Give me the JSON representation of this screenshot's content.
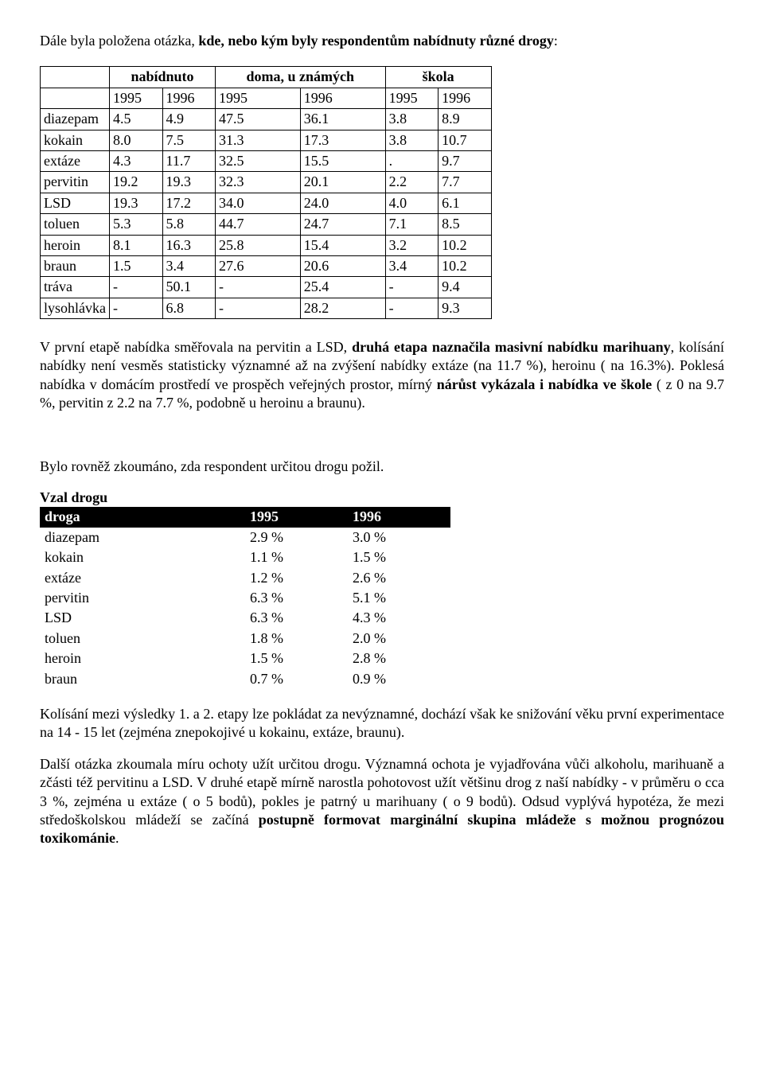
{
  "intro": {
    "pre": "Dále byla položena  otázka, ",
    "bold": "kde, nebo kým  byly respondentům  nabídnuty různé drogy",
    "post": ":"
  },
  "table1": {
    "col_groups": [
      "nabídnuto",
      "doma, u známých",
      "škola"
    ],
    "years": [
      "1995",
      "1996",
      "1995",
      "1996",
      "1995",
      "1996"
    ],
    "rows": [
      {
        "label": "diazepam",
        "v": [
          "4.5",
          "4.9",
          "47.5",
          "36.1",
          "3.8",
          "8.9"
        ]
      },
      {
        "label": "kokain",
        "v": [
          "8.0",
          "7.5",
          "31.3",
          "17.3",
          "3.8",
          "10.7"
        ]
      },
      {
        "label": "extáze",
        "v": [
          "4.3",
          "11.7",
          "32.5",
          "15.5",
          ".",
          "9.7"
        ]
      },
      {
        "label": "pervitin",
        "v": [
          "19.2",
          "19.3",
          "32.3",
          "20.1",
          "2.2",
          "7.7"
        ]
      },
      {
        "label": "LSD",
        "v": [
          "19.3",
          "17.2",
          "34.0",
          "24.0",
          "4.0",
          "6.1"
        ]
      },
      {
        "label": "toluen",
        "v": [
          "5.3",
          "5.8",
          "44.7",
          "24.7",
          "7.1",
          "8.5"
        ]
      },
      {
        "label": "heroin",
        "v": [
          "8.1",
          "16.3",
          "25.8",
          "15.4",
          "3.2",
          "10.2"
        ]
      },
      {
        "label": "braun",
        "v": [
          "1.5",
          "3.4",
          "27.6",
          "20.6",
          "3.4",
          "10.2"
        ]
      },
      {
        "label": "tráva",
        "v": [
          "-",
          "50.1",
          "-",
          "25.4",
          "-",
          "9.4"
        ]
      },
      {
        "label": "lysohlávka",
        "v": [
          "-",
          "6.8",
          "-",
          "28.2",
          "-",
          "9.3"
        ]
      }
    ]
  },
  "para1": {
    "t1": "V první etapě nabídka směřovala na pervitin a LSD, ",
    "b1": "druhá etapa naznačila masivní nabídku marihuany",
    "t2": ", kolísání nabídky není vesměs statisticky významné až na  zvýšení nabídky extáze (na 11.7 %), heroinu ( na 16.3%). Poklesá nabídka v domácím prostředí ve prospěch veřejných prostor, mírný ",
    "b2": "nárůst vykázala i nabídka ve škole",
    "t3": " (  z 0 na 9.7 %, pervitin z 2.2 na 7.7 %,  podobně u heroinu a braunu)."
  },
  "para2": "Bylo rovněž zkoumáno, zda respondent určitou drogu požil.",
  "table2": {
    "title": "Vzal drogu",
    "headers": [
      "droga",
      "1995",
      "1996"
    ],
    "rows": [
      {
        "label": "diazepam",
        "y1": "2.9 %",
        "y2": "3.0 %"
      },
      {
        "label": "kokain",
        "y1": "1.1 %",
        "y2": "1.5 %"
      },
      {
        "label": "extáze",
        "y1": "1.2 %",
        "y2": "2.6 %"
      },
      {
        "label": "pervitin",
        "y1": "6.3 %",
        "y2": "5.1 %"
      },
      {
        "label": "LSD",
        "y1": "6.3 %",
        "y2": "4.3 %"
      },
      {
        "label": "toluen",
        "y1": "1.8 %",
        "y2": "2.0 %"
      },
      {
        "label": "heroin",
        "y1": "1.5 %",
        "y2": "2.8 %"
      },
      {
        "label": "braun",
        "y1": "0.7 %",
        "y2": "0.9 %"
      }
    ]
  },
  "para3": "Kolísání mezi výsledky 1. a 2. etapy lze pokládat za nevýznamné, dochází však ke snižování věku první experimentace na 14 - 15 let (zejména znepokojivé u kokainu, extáze, braunu).",
  "para4": {
    "t1": "Další  otázka zkoumala míru ochoty užít určitou drogu. Významná ochota je vyjadřována vůči alkoholu, marihuaně a zčásti též pervitinu a LSD. V druhé etapě mírně narostla pohotovost užít většinu drog z naší nabídky -  v průměru o cca 3 %, zejména u extáze ( o 5 bodů), pokles je patrný u marihuany ( o 9 bodů). Odsud vyplývá hypotéza, že mezi středoškolskou mládeží se začíná ",
    "b1": "postupně formovat marginální skupina mládeže s možnou prognózou toxikománie",
    "t2": "."
  }
}
